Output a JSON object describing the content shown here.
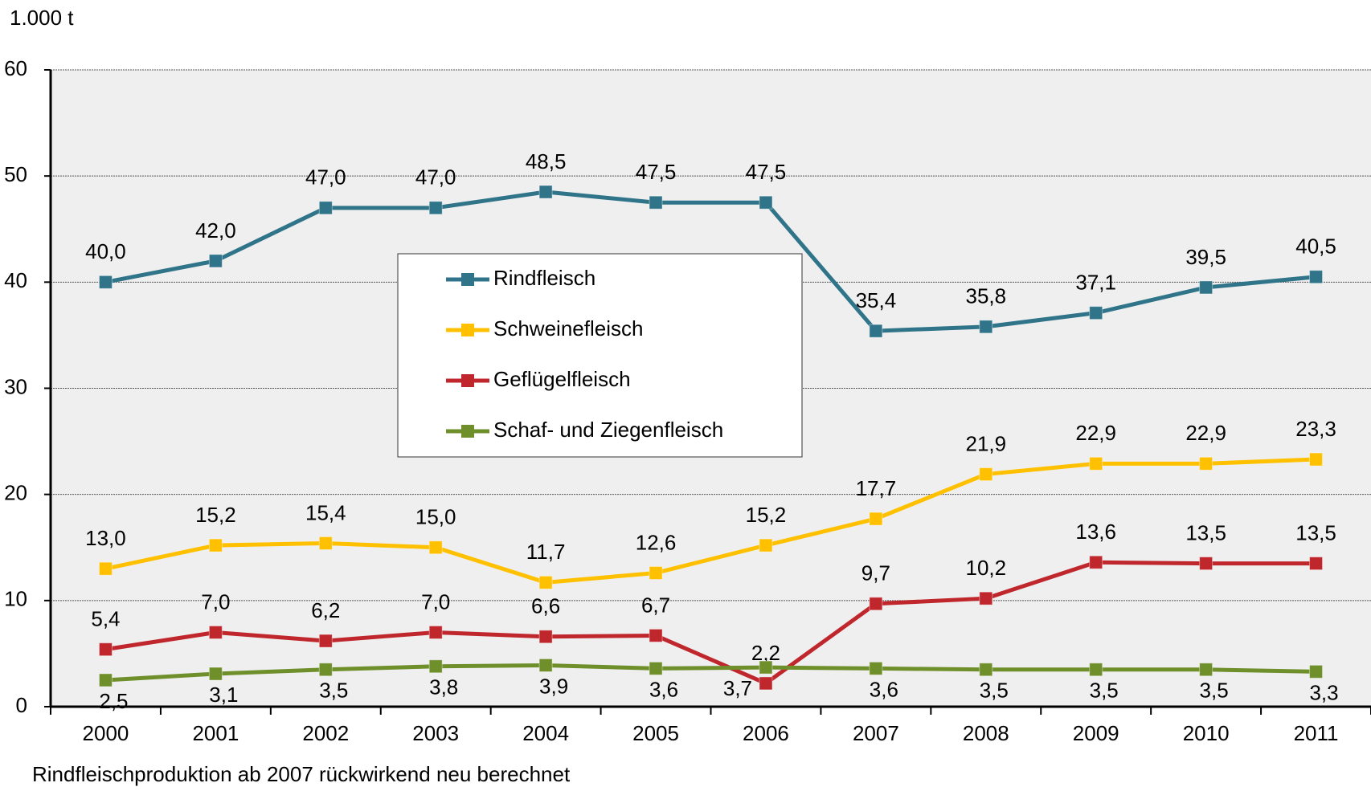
{
  "chart_data": {
    "type": "line",
    "y_label": "1.000 t",
    "note": "Rindfleischproduktion ab 2007 rückwirkend neu berechnet",
    "categories": [
      "2000",
      "2001",
      "2002",
      "2003",
      "2004",
      "2005",
      "2006",
      "2007",
      "2008",
      "2009",
      "2010",
      "2011"
    ],
    "ylim": [
      0,
      60
    ],
    "yticks": [
      0,
      10,
      20,
      30,
      40,
      50,
      60
    ],
    "grid": true,
    "series": [
      {
        "name": "Rindfleisch",
        "color": "#2f7489",
        "values": [
          40.0,
          42.0,
          47.0,
          47.0,
          48.5,
          47.5,
          47.5,
          35.4,
          35.8,
          37.1,
          39.5,
          40.5
        ],
        "value_labels": [
          "40,0",
          "42,0",
          "47,0",
          "47,0",
          "48,5",
          "47,5",
          "47,5",
          "35,4",
          "35,8",
          "37,1",
          "39,5",
          "40,5"
        ]
      },
      {
        "name": "Schweinefleisch",
        "color": "#ffc000",
        "values": [
          13.0,
          15.2,
          15.4,
          15.0,
          11.7,
          12.6,
          15.2,
          17.7,
          21.9,
          22.9,
          22.9,
          23.3
        ],
        "value_labels": [
          "13,0",
          "15,2",
          "15,4",
          "15,0",
          "11,7",
          "12,6",
          "15,2",
          "17,7",
          "21,9",
          "22,9",
          "22,9",
          "23,3"
        ]
      },
      {
        "name": "Geflügelfleisch",
        "color": "#c0272d",
        "values": [
          5.4,
          7.0,
          6.2,
          7.0,
          6.6,
          6.7,
          2.2,
          9.7,
          10.2,
          13.6,
          13.5,
          13.5
        ],
        "value_labels": [
          "5,4",
          "7,0",
          "6,2",
          "7,0",
          "6,6",
          "6,7",
          "2,2",
          "9,7",
          "10,2",
          "13,6",
          "13,5",
          "13,5"
        ]
      },
      {
        "name": "Schaf- und Ziegenfleisch",
        "color": "#6f8f2b",
        "values": [
          2.5,
          3.1,
          3.5,
          3.8,
          3.9,
          3.6,
          3.7,
          3.6,
          3.5,
          3.5,
          3.5,
          3.3
        ],
        "value_labels": [
          "2,5",
          "3,1",
          "3,5",
          "3,8",
          "3,9",
          "3,6",
          "3,7",
          "3,6",
          "3,5",
          "3,5",
          "3,5",
          "3,3"
        ]
      }
    ]
  }
}
